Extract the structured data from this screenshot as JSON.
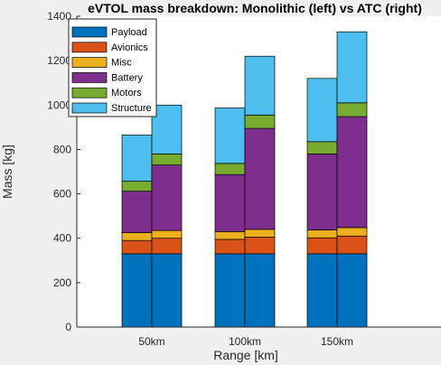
{
  "chart_data": {
    "type": "bar",
    "stacked": true,
    "title": "eVTOL mass breakdown: Monolithic (left) vs ATC (right)",
    "xlabel": "Range [km]",
    "ylabel": "Mass [kg]",
    "categories": [
      "50km",
      "100km",
      "150km"
    ],
    "ylim": [
      0,
      1400
    ],
    "yticks": [
      0,
      200,
      400,
      600,
      800,
      1000,
      1200,
      1400
    ],
    "grid": false,
    "legend_position": "top-left",
    "groups": [
      "Monolithic",
      "ATC"
    ],
    "series": [
      {
        "name": "Payload",
        "color": "#0072bd",
        "Monolithic": [
          330,
          330,
          330
        ],
        "ATC": [
          330,
          330,
          330
        ]
      },
      {
        "name": "Avionics",
        "color": "#d95319",
        "Monolithic": [
          60,
          65,
          72
        ],
        "ATC": [
          70,
          75,
          80
        ]
      },
      {
        "name": "Misc",
        "color": "#edb120",
        "Monolithic": [
          35,
          35,
          35
        ],
        "ATC": [
          35,
          35,
          38
        ]
      },
      {
        "name": "Battery",
        "color": "#7e2f8e",
        "Monolithic": [
          187,
          257,
          343
        ],
        "ATC": [
          295,
          455,
          500
        ]
      },
      {
        "name": "Motors",
        "color": "#77ac30",
        "Monolithic": [
          45,
          50,
          55
        ],
        "ATC": [
          50,
          60,
          62
        ]
      },
      {
        "name": "Structure",
        "color": "#4dbeee",
        "Monolithic": [
          208,
          250,
          285
        ],
        "ATC": [
          220,
          265,
          320
        ]
      }
    ]
  }
}
